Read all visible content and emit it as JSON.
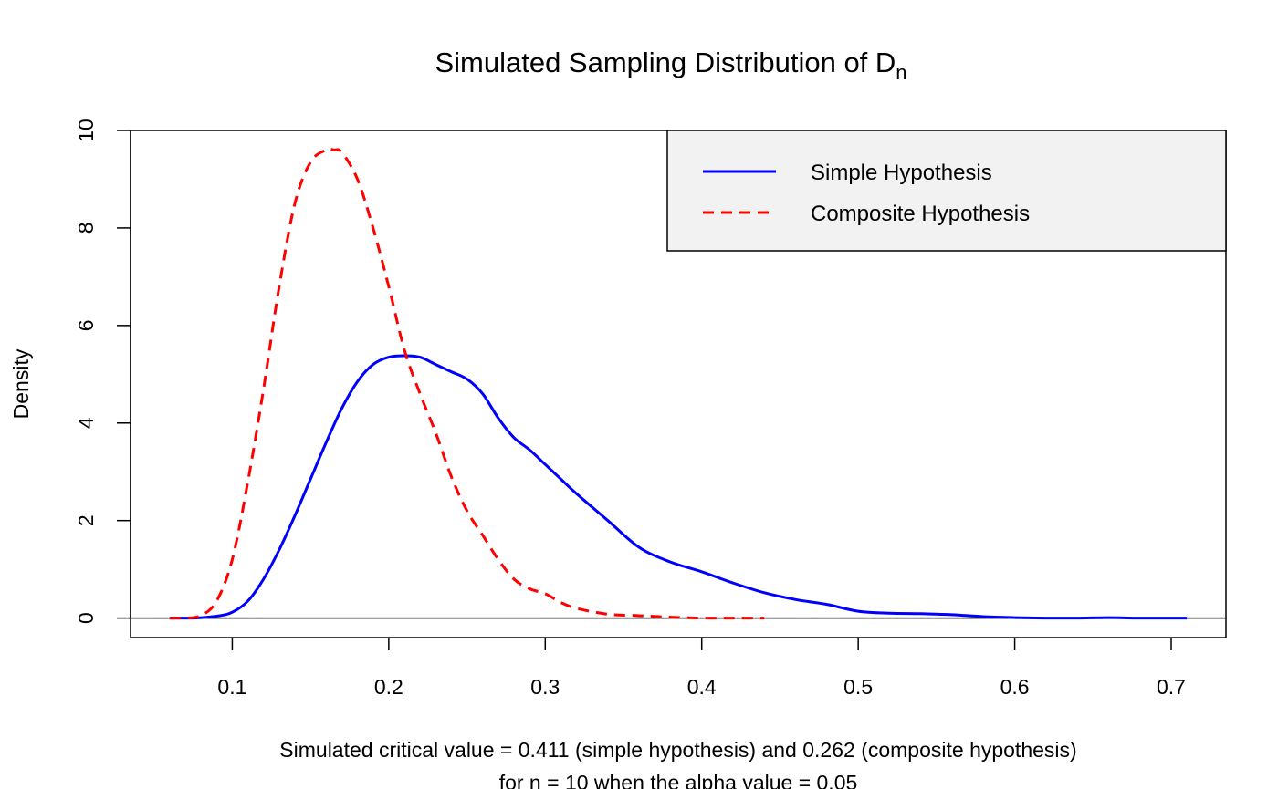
{
  "chart_data": {
    "type": "line",
    "title": "Simulated Sampling Distribution of D",
    "title_subscript": "n",
    "xlabel_line1": "Simulated critical value = 0.411 (simple hypothesis) and  0.262 (composite hypothesis)",
    "xlabel_line2": "for n = 10 when the alpha value = 0.05",
    "ylabel": "Density",
    "xlim": [
      0.035,
      0.735
    ],
    "ylim": [
      -0.4,
      10
    ],
    "x_ticks": [
      0.1,
      0.2,
      0.3,
      0.4,
      0.5,
      0.6,
      0.7
    ],
    "x_tick_labels": [
      "0.1",
      "0.2",
      "0.3",
      "0.4",
      "0.5",
      "0.6",
      "0.7"
    ],
    "y_ticks": [
      0,
      2,
      4,
      6,
      8,
      10
    ],
    "y_tick_labels": [
      "0",
      "2",
      "4",
      "6",
      "8",
      "10"
    ],
    "reference_line_y": 0,
    "grid": false,
    "legend_position": "top-right",
    "legend_background": "#f2f2f2",
    "series": [
      {
        "name": "Simple Hypothesis",
        "color": "#0000ff",
        "dash": "solid",
        "x": [
          0.06,
          0.075,
          0.09,
          0.1,
          0.11,
          0.12,
          0.13,
          0.14,
          0.15,
          0.16,
          0.17,
          0.18,
          0.19,
          0.2,
          0.21,
          0.22,
          0.23,
          0.24,
          0.25,
          0.26,
          0.27,
          0.28,
          0.29,
          0.3,
          0.31,
          0.32,
          0.34,
          0.36,
          0.38,
          0.4,
          0.42,
          0.44,
          0.46,
          0.48,
          0.5,
          0.52,
          0.54,
          0.56,
          0.58,
          0.6,
          0.62,
          0.64,
          0.66,
          0.68,
          0.71
        ],
        "y": [
          0.0,
          0.0,
          0.04,
          0.12,
          0.35,
          0.8,
          1.4,
          2.1,
          2.85,
          3.6,
          4.3,
          4.85,
          5.2,
          5.35,
          5.38,
          5.35,
          5.2,
          5.05,
          4.9,
          4.6,
          4.1,
          3.7,
          3.45,
          3.15,
          2.85,
          2.55,
          2.0,
          1.45,
          1.15,
          0.95,
          0.72,
          0.52,
          0.38,
          0.28,
          0.14,
          0.1,
          0.09,
          0.07,
          0.03,
          0.01,
          0.0,
          0.0,
          0.01,
          0.0,
          0.0
        ]
      },
      {
        "name": "Composite Hypothesis",
        "color": "#ff0000",
        "dash": "dashed",
        "x": [
          0.06,
          0.07,
          0.08,
          0.09,
          0.1,
          0.11,
          0.12,
          0.13,
          0.14,
          0.15,
          0.16,
          0.165,
          0.17,
          0.18,
          0.19,
          0.2,
          0.21,
          0.22,
          0.23,
          0.24,
          0.25,
          0.26,
          0.27,
          0.28,
          0.29,
          0.3,
          0.31,
          0.32,
          0.34,
          0.36,
          0.38,
          0.4,
          0.42,
          0.44
        ],
        "y": [
          0.0,
          0.0,
          0.05,
          0.35,
          1.2,
          2.8,
          4.7,
          6.8,
          8.5,
          9.35,
          9.6,
          9.6,
          9.55,
          9.0,
          8.0,
          6.8,
          5.5,
          4.6,
          3.8,
          2.9,
          2.2,
          1.7,
          1.2,
          0.8,
          0.6,
          0.5,
          0.32,
          0.2,
          0.08,
          0.05,
          0.02,
          0.0,
          0.0,
          0.0
        ]
      }
    ]
  }
}
